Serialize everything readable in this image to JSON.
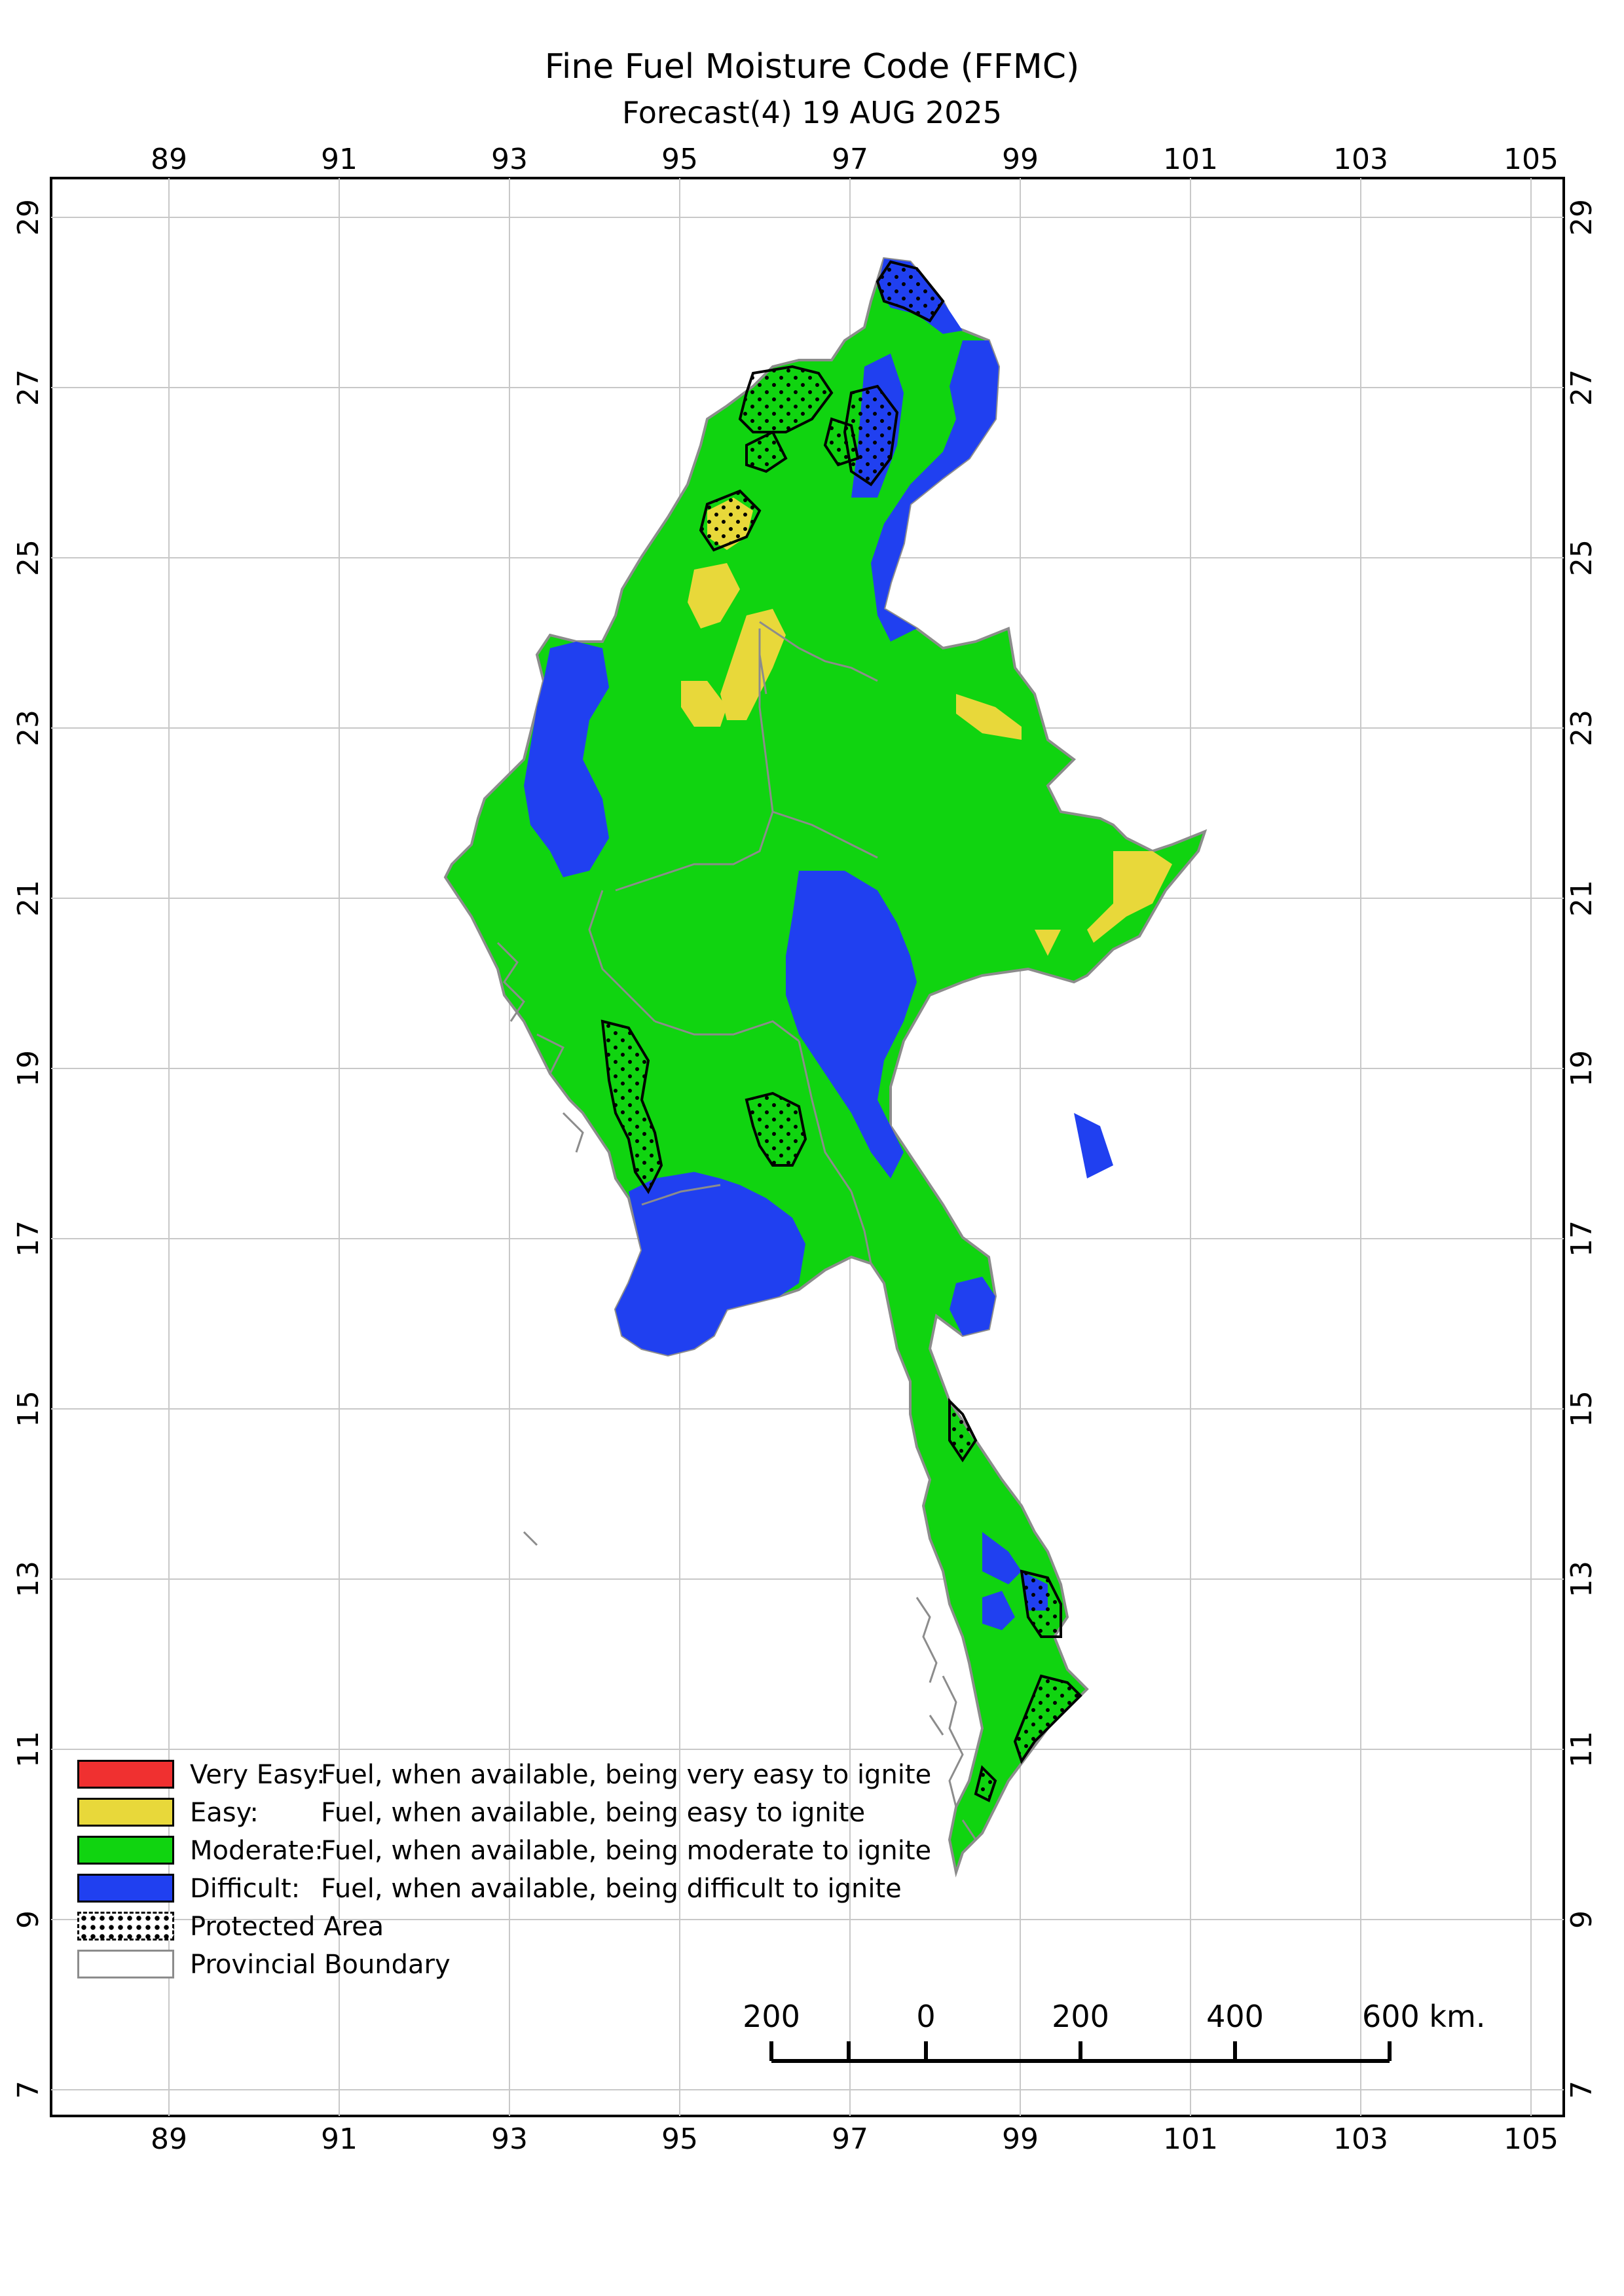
{
  "title": "Fine Fuel Moisture Code (FFMC)",
  "subtitle": "Forecast(4) 19 AUG 2025",
  "axes": {
    "x_ticks": [
      "89",
      "91",
      "93",
      "95",
      "97",
      "99",
      "101",
      "103",
      "105"
    ],
    "y_ticks": [
      "29",
      "27",
      "25",
      "23",
      "21",
      "19",
      "17",
      "15",
      "13",
      "11",
      "9",
      "7"
    ]
  },
  "legend": {
    "items": [
      {
        "category": "Very Easy:",
        "description": "Fuel, when available, being very easy to ignite",
        "color": "#f03030"
      },
      {
        "category": "Easy:",
        "description": "Fuel, when available, being easy to ignite",
        "color": "#e8d83a"
      },
      {
        "category": "Moderate:",
        "description": "Fuel, when available, being moderate to ignite",
        "color": "#10d410"
      },
      {
        "category": "Difficult:",
        "description": "Fuel, when available, being difficult to ignite",
        "color": "#2040f0"
      }
    ],
    "protected_area": "Protected Area",
    "provincial_boundary": "Provincial Boundary"
  },
  "scale_bar": {
    "labels": [
      "200",
      "0",
      "200",
      "400",
      "600 km."
    ]
  },
  "colors": {
    "moderate": "#10d410",
    "easy": "#e8d83a",
    "difficult": "#2040f0",
    "boundary": "#8c8c8c",
    "grid": "#c8c8c8"
  }
}
